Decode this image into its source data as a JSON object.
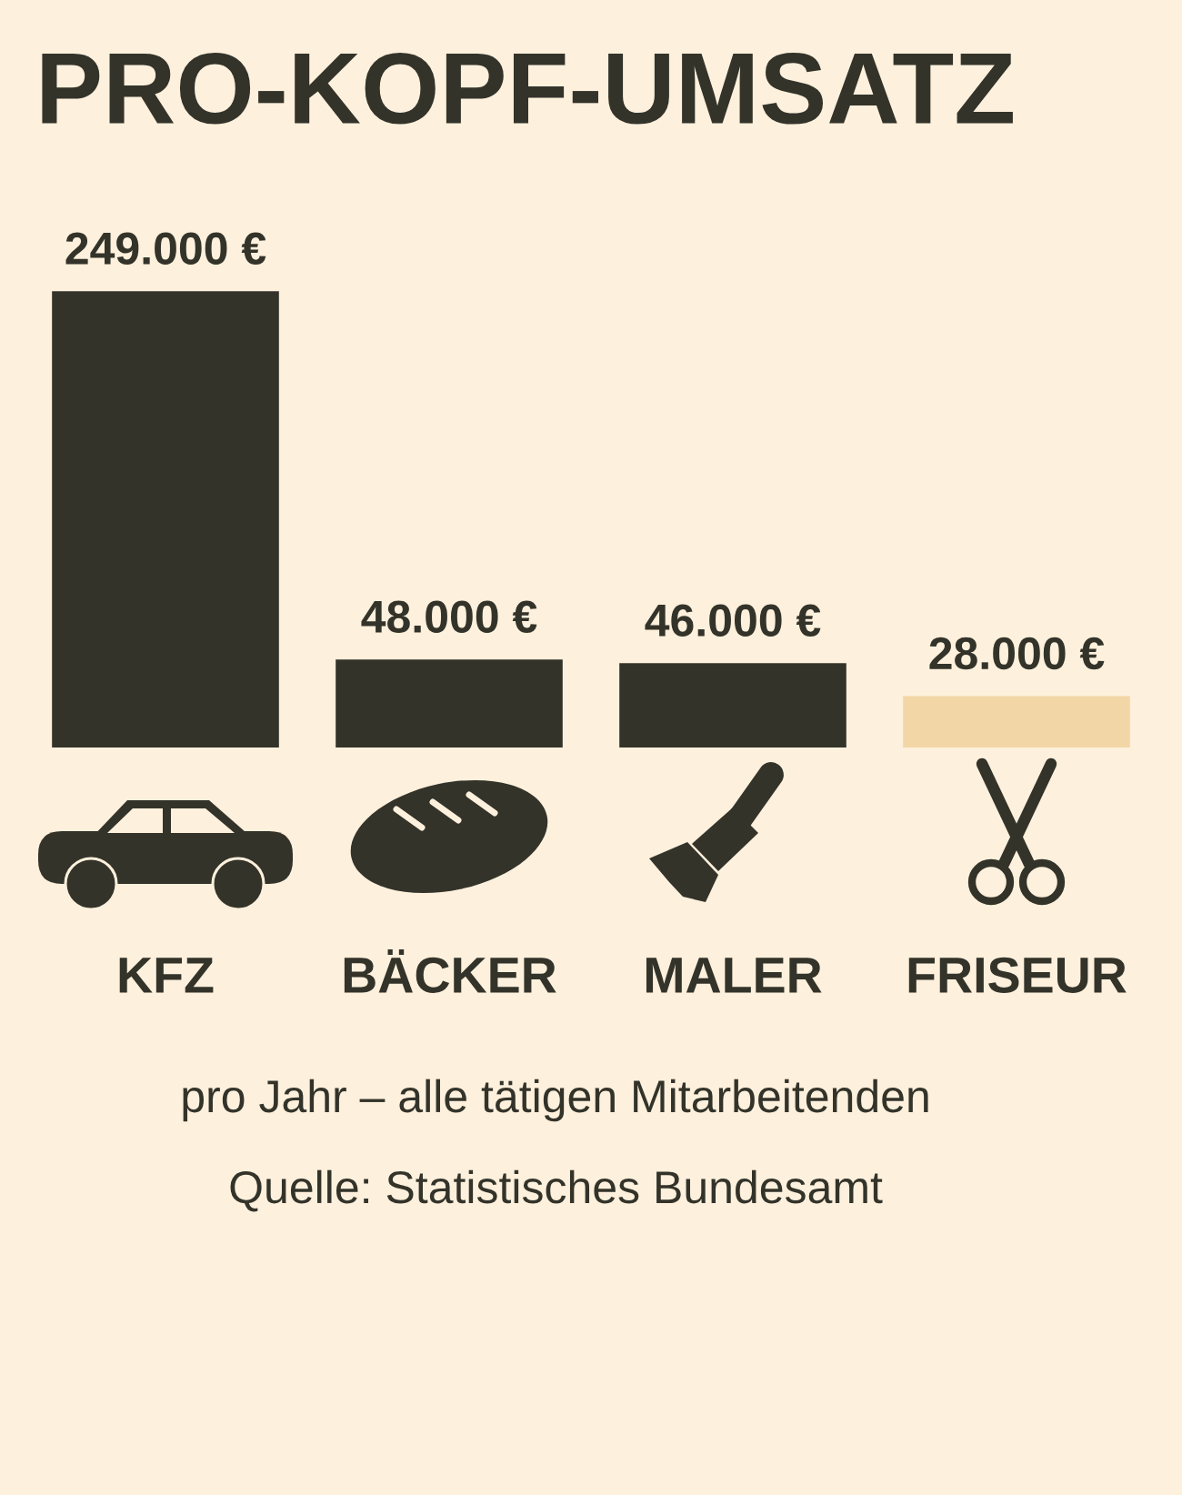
{
  "chart_data": {
    "type": "bar",
    "title": "PRO-KOPF-UMSATZ",
    "categories": [
      "KFZ",
      "BÄCKER",
      "MALER",
      "FRISEUR"
    ],
    "values": [
      249000,
      48000,
      46000,
      28000
    ],
    "colors": [
      "#33332a",
      "#33332a",
      "#33332a",
      "#f2d6a6"
    ],
    "value_labels": [
      "249.000 €",
      "48.000 €",
      "46.000 €",
      "28.000 €"
    ],
    "annotations": [
      "pro Jahr – alle tätigen Mitarbeitenden",
      "Quelle: Statistisches Bundesamt"
    ]
  }
}
